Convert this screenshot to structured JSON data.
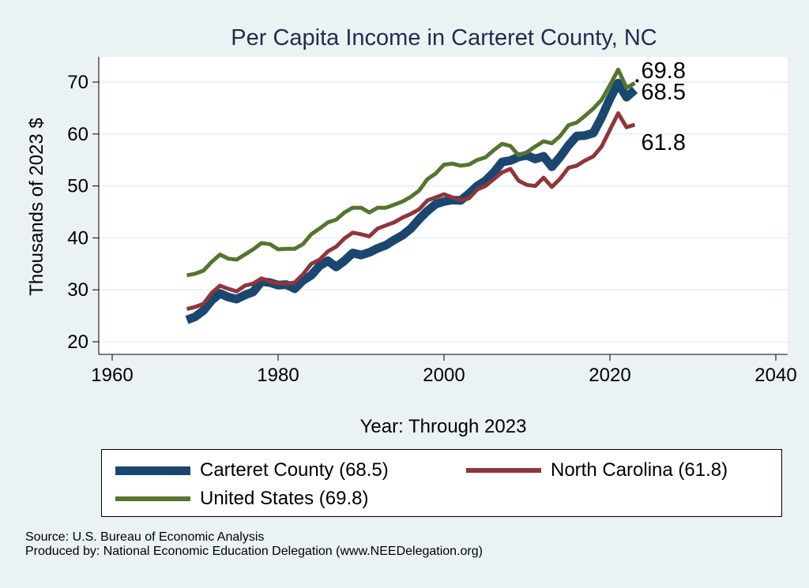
{
  "chart_data": {
    "type": "line",
    "title": "Per Capita Income in Carteret County, NC",
    "xlabel": "Year: Through 2023",
    "ylabel": "Thousands of 2023 $",
    "xlim": [
      1958,
      2041
    ],
    "ylim": [
      18,
      76
    ],
    "xticks": [
      1960,
      1980,
      2000,
      2020,
      2040
    ],
    "yticks": [
      20,
      30,
      40,
      50,
      60,
      70
    ],
    "grid": "horizontal",
    "legend_position": "bottom",
    "x": [
      1969,
      1970,
      1971,
      1972,
      1973,
      1974,
      1975,
      1976,
      1977,
      1978,
      1979,
      1980,
      1981,
      1982,
      1983,
      1984,
      1985,
      1986,
      1987,
      1988,
      1989,
      1990,
      1991,
      1992,
      1993,
      1994,
      1995,
      1996,
      1997,
      1998,
      1999,
      2000,
      2001,
      2002,
      2003,
      2004,
      2005,
      2006,
      2007,
      2008,
      2009,
      2010,
      2011,
      2012,
      2013,
      2014,
      2015,
      2016,
      2017,
      2018,
      2019,
      2020,
      2021,
      2022,
      2023
    ],
    "series": [
      {
        "name": "Carteret County",
        "legend_label": "Carteret County (68.5)",
        "color": "#1a476f",
        "end_label": "68.5",
        "values": [
          24.2,
          24.8,
          26.0,
          28.0,
          29.3,
          28.6,
          28.2,
          29.0,
          29.6,
          31.6,
          31.4,
          30.9,
          31.0,
          30.2,
          31.8,
          32.8,
          34.6,
          35.6,
          34.4,
          35.6,
          37.1,
          36.7,
          37.2,
          38.0,
          38.6,
          39.6,
          40.5,
          41.8,
          43.6,
          45.2,
          46.5,
          47.0,
          47.3,
          47.2,
          48.5,
          50.0,
          51.0,
          52.6,
          54.6,
          54.9,
          55.6,
          55.9,
          55.2,
          55.7,
          53.7,
          55.6,
          57.8,
          59.6,
          59.7,
          60.2,
          63.2,
          66.8,
          69.8,
          67.1,
          68.5
        ]
      },
      {
        "name": "North Carolina",
        "legend_label": "North Carolina (61.8)",
        "color": "#90353b",
        "end_label": "61.8",
        "values": [
          26.3,
          26.7,
          27.3,
          29.4,
          30.8,
          30.2,
          29.7,
          30.8,
          31.2,
          32.2,
          31.6,
          31.2,
          31.2,
          31.4,
          33.0,
          35.0,
          35.8,
          37.4,
          38.3,
          39.9,
          41.0,
          40.7,
          40.3,
          41.8,
          42.4,
          43.0,
          43.9,
          44.6,
          45.5,
          47.2,
          47.8,
          48.4,
          47.8,
          47.3,
          47.6,
          49.3,
          50.0,
          51.3,
          52.6,
          53.3,
          51.0,
          50.2,
          50.0,
          51.6,
          49.8,
          51.4,
          53.5,
          53.9,
          54.9,
          55.7,
          57.6,
          60.8,
          64.0,
          61.3,
          61.8
        ]
      },
      {
        "name": "United States",
        "legend_label": "United States (69.8)",
        "color": "#55752f",
        "end_label": "69.8",
        "values": [
          32.8,
          33.1,
          33.7,
          35.4,
          36.8,
          36.0,
          35.8,
          36.8,
          37.8,
          39.0,
          38.8,
          37.8,
          37.9,
          37.9,
          38.8,
          40.7,
          41.8,
          43.0,
          43.5,
          44.9,
          45.8,
          45.8,
          44.9,
          45.8,
          45.8,
          46.4,
          47.0,
          47.9,
          49.1,
          51.3,
          52.4,
          54.1,
          54.3,
          53.9,
          54.1,
          55.0,
          55.5,
          56.9,
          58.1,
          57.7,
          55.9,
          56.5,
          57.6,
          58.6,
          58.2,
          59.6,
          61.7,
          62.2,
          63.5,
          64.9,
          66.6,
          69.4,
          72.4,
          68.9,
          69.8
        ]
      }
    ]
  },
  "notes": {
    "source": "Source: U.S. Bureau of Economic Analysis",
    "producer": "Produced by: National Economic Education Delegation (www.NEEDelegation.org)"
  }
}
